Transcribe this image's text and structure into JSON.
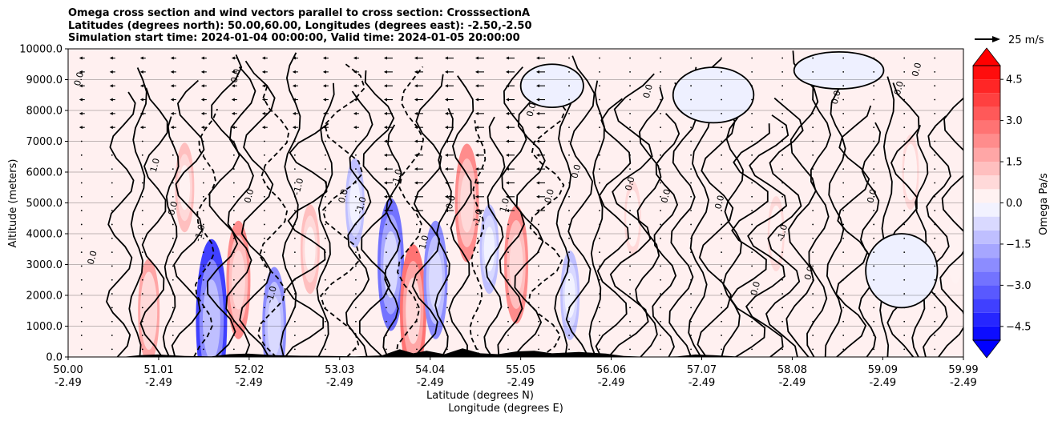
{
  "title_lines": [
    "Omega cross section and wind vectors parallel to cross section: CrosssectionA",
    "Latitudes (degrees north): 50.00,60.00, Longitudes (degrees east): -2.50,-2.50",
    "Simulation start time: 2024-01-04 00:00:00, Valid time: 2024-01-05 20:00:00"
  ],
  "vector_reference": "25 m/s",
  "chart_data": {
    "type": "contourf",
    "title": "Omega cross section and wind vectors parallel to cross section: CrosssectionA",
    "ylabel": "Altitude (meters)",
    "xlabel_lines": [
      "Latitude (degrees N)",
      "Longitude (degrees E)"
    ],
    "ylim": [
      0,
      10000
    ],
    "y_ticks": [
      0,
      1000,
      2000,
      3000,
      4000,
      5000,
      6000,
      7000,
      8000,
      9000,
      10000
    ],
    "y_tick_labels": [
      "0.0",
      "1000.0",
      "2000.0",
      "3000.0",
      "4000.0",
      "5000.0",
      "6000.0",
      "7000.0",
      "8000.0",
      "9000.0",
      "10000.0"
    ],
    "xlim": [
      50.0,
      59.99
    ],
    "x_ticks": [
      50.0,
      51.01,
      52.02,
      53.03,
      54.04,
      55.05,
      56.06,
      57.07,
      58.08,
      59.09,
      59.99
    ],
    "x_tick_labels_lat": [
      "50.00",
      "51.01",
      "52.02",
      "53.03",
      "54.04",
      "55.05",
      "56.06",
      "57.07",
      "58.08",
      "59.09",
      "59.99"
    ],
    "x_tick_labels_lon": [
      "-2.49",
      "-2.49",
      "-2.49",
      "-2.49",
      "-2.49",
      "-2.49",
      "-2.49",
      "-2.49",
      "-2.49",
      "-2.49",
      "-2.49"
    ],
    "colorbar": {
      "label": "Omega Pa/s",
      "range": [
        -5.0,
        5.0
      ],
      "ticks": [
        4.5,
        3.0,
        1.5,
        0.0,
        -1.5,
        -3.0,
        -4.5
      ],
      "tick_labels": [
        "4.5",
        "3.0",
        "1.5",
        "0.0",
        "−1.5",
        "−3.0",
        "−4.5"
      ],
      "cmap": "bwr",
      "extend": "both"
    },
    "contour_labels": [
      "0.0",
      "-1.0",
      "1.0"
    ],
    "omega_regions": [
      {
        "lat": 50.9,
        "alt": 1500,
        "v": 1.5
      },
      {
        "lat": 51.3,
        "alt": 5500,
        "v": 1.0
      },
      {
        "lat": 51.6,
        "alt": 1200,
        "v": -3.5
      },
      {
        "lat": 51.9,
        "alt": 2500,
        "v": 2.0
      },
      {
        "lat": 52.3,
        "alt": 1000,
        "v": -2.0
      },
      {
        "lat": 52.7,
        "alt": 3500,
        "v": 1.0
      },
      {
        "lat": 53.2,
        "alt": 5000,
        "v": -1.0
      },
      {
        "lat": 53.6,
        "alt": 3000,
        "v": -2.5
      },
      {
        "lat": 53.85,
        "alt": 1500,
        "v": 2.5
      },
      {
        "lat": 54.1,
        "alt": 2500,
        "v": -2.0
      },
      {
        "lat": 54.45,
        "alt": 5000,
        "v": 2.0
      },
      {
        "lat": 54.7,
        "alt": 3500,
        "v": -1.0
      },
      {
        "lat": 55.0,
        "alt": 3000,
        "v": 2.0
      },
      {
        "lat": 55.6,
        "alt": 2000,
        "v": -1.0
      },
      {
        "lat": 56.3,
        "alt": 4500,
        "v": 0.5
      },
      {
        "lat": 57.9,
        "alt": 4000,
        "v": 0.5
      },
      {
        "lat": 59.4,
        "alt": 6000,
        "v": 0.5
      },
      {
        "lat": 59.9,
        "alt": 3500,
        "v": 0.3
      }
    ]
  }
}
